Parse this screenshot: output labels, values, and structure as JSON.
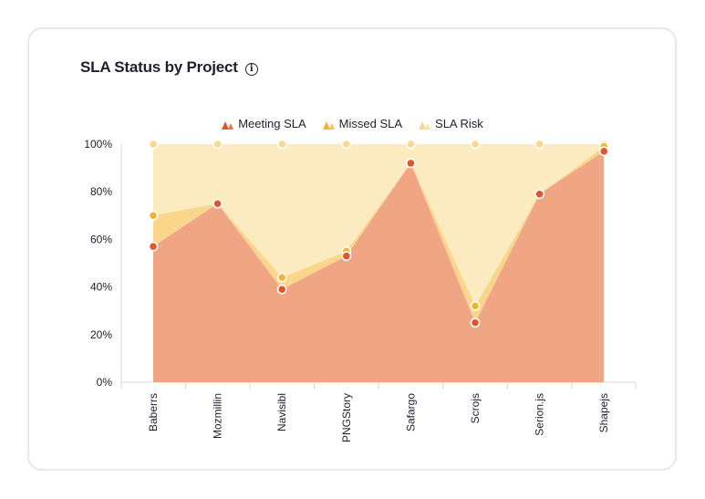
{
  "card": {
    "title": "SLA Status by Project",
    "info_icon": "info-icon"
  },
  "chart_data": {
    "type": "area",
    "stacked": "percent",
    "categories": [
      "Baberrs",
      "Mozmillin",
      "Navisibl",
      "PNGStory",
      "Safargo",
      "Scrojs",
      "Serion.js",
      "Shapejs"
    ],
    "series": [
      {
        "name": "Meeting SLA",
        "color": "#f0a584",
        "marker": "#e2562b",
        "values": [
          57,
          75,
          39,
          53,
          92,
          25,
          79,
          97
        ]
      },
      {
        "name": "Missed SLA",
        "color": "#f9d68c",
        "marker": "#f2b531",
        "values": [
          13,
          0,
          5,
          2,
          0,
          7,
          0,
          2
        ]
      },
      {
        "name": "SLA Risk",
        "color": "#fcebc1",
        "marker": "#f8d98d",
        "values": [
          30,
          25,
          56,
          45,
          8,
          68,
          21,
          1
        ]
      }
    ],
    "ylim": [
      0,
      100
    ],
    "yticks": [
      "0%",
      "20%",
      "40%",
      "60%",
      "80%",
      "100%"
    ],
    "legend_position": "top"
  }
}
